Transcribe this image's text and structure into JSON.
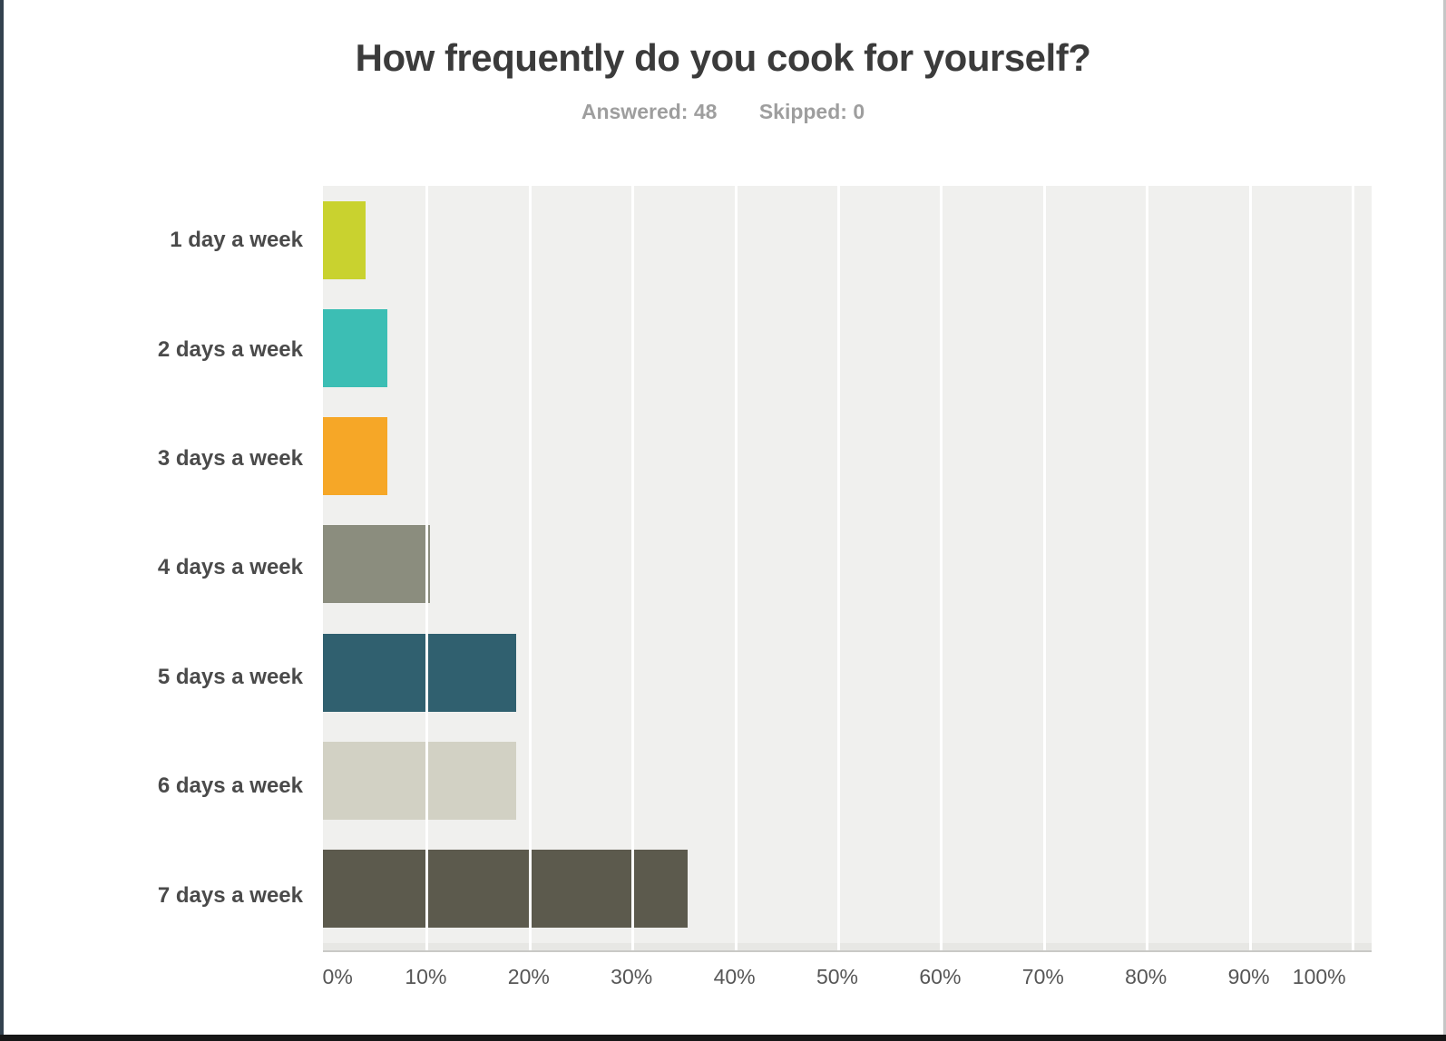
{
  "frame": {
    "left_border_color": "#33424f",
    "right_border_color": "#c6c6c6",
    "bottom_border_color": "#161616"
  },
  "header": {
    "title": "How frequently do you cook for yourself?",
    "answered_text": "Answered: 48",
    "skipped_text": "Skipped: 0"
  },
  "chart_data": {
    "type": "bar",
    "orientation": "horizontal",
    "title": "How frequently do you cook for yourself?",
    "answered": 48,
    "skipped": 0,
    "categories": [
      "1 day a week",
      "2 days a week",
      "3 days a week",
      "4 days a week",
      "5 days a week",
      "6 days a week",
      "7 days a week"
    ],
    "values": [
      4.17,
      6.25,
      6.25,
      10.42,
      18.75,
      18.75,
      35.42
    ],
    "value_unit": "%",
    "bar_colors": [
      "#c9d22f",
      "#3cbeb4",
      "#f6a727",
      "#8b8d7e",
      "#30606f",
      "#d2d1c4",
      "#5c5a4d"
    ],
    "xlabel": "",
    "ylabel": "",
    "xlim": [
      0,
      100
    ],
    "x_tick_labels": [
      "0%",
      "10%",
      "20%",
      "30%",
      "40%",
      "50%",
      "60%",
      "70%",
      "80%",
      "90%",
      "100%"
    ],
    "grid": "vertical",
    "gridline_color": "#ffffff",
    "plot_background": "#f0f0ee",
    "legend": "none"
  }
}
